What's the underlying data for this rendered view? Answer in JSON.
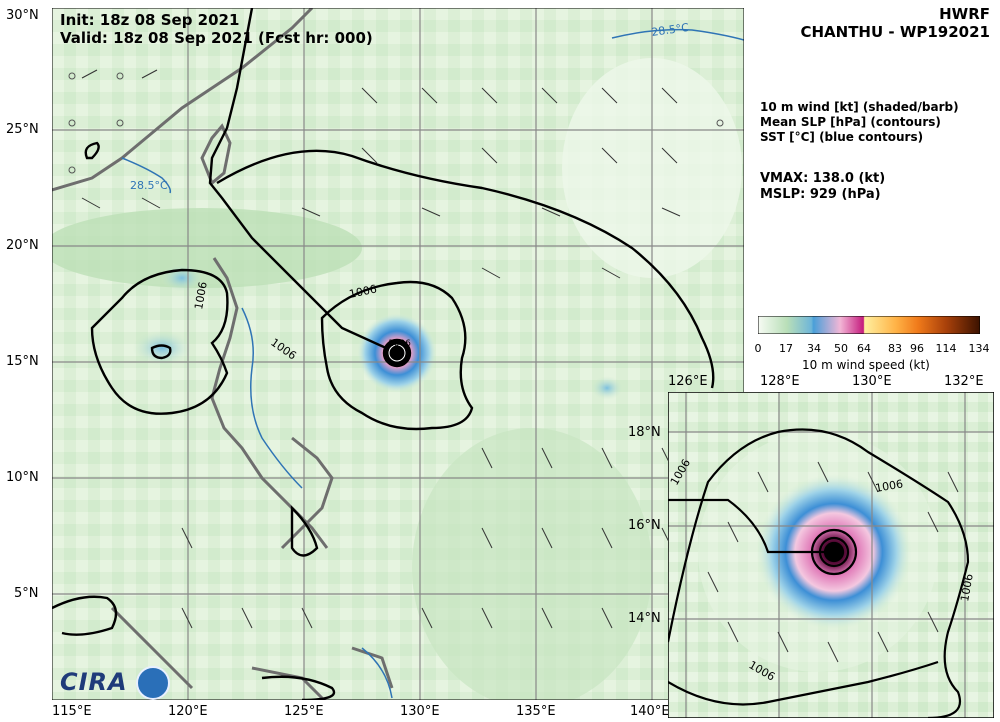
{
  "header": {
    "init": "Init:   18z 08 Sep 2021",
    "valid": "Valid: 18z 08 Sep 2021 (Fcst hr: 000)",
    "model": "HWRF",
    "storm": "CHANTHU - WP192021"
  },
  "legend": {
    "line1": "10 m wind [kt] (shaded/barb)",
    "line2": "Mean SLP [hPa] (contours)",
    "line3": "SST [°C] (blue contours)"
  },
  "stats": {
    "vmax": "VMAX: 138.0 (kt)",
    "mslp": "MSLP:  929 (hPa)"
  },
  "colorbar": {
    "label": "10 m wind speed (kt)",
    "ticks": [
      "0",
      "17",
      "34",
      "50",
      "64",
      "83",
      "96",
      "114",
      "134"
    ],
    "colors": [
      "#f7fbf4",
      "#b9dfb8",
      "#4a9fd8",
      "#c51b7d",
      "#fff0a0",
      "#ffb347",
      "#e0600c",
      "#8b2e05",
      "#3b1200"
    ]
  },
  "main_map": {
    "lat_labels": [
      "30°N",
      "25°N",
      "20°N",
      "15°N",
      "10°N",
      "5°N"
    ],
    "lon_labels": [
      "115°E",
      "120°E",
      "125°E",
      "130°E",
      "135°E",
      "140°E"
    ],
    "contour_labels": [
      "1006",
      "1006",
      "1006",
      "1006"
    ],
    "sst_labels": [
      "28.5°C",
      "28.5°C"
    ]
  },
  "inset_map": {
    "lon_labels": [
      "126°E",
      "128°E",
      "130°E",
      "132°E"
    ],
    "lat_labels": [
      "18°N",
      "16°N",
      "14°N"
    ],
    "contour_labels": [
      "1006",
      "1006",
      "1006",
      "1006"
    ]
  },
  "logo": {
    "text": "CIRA"
  }
}
